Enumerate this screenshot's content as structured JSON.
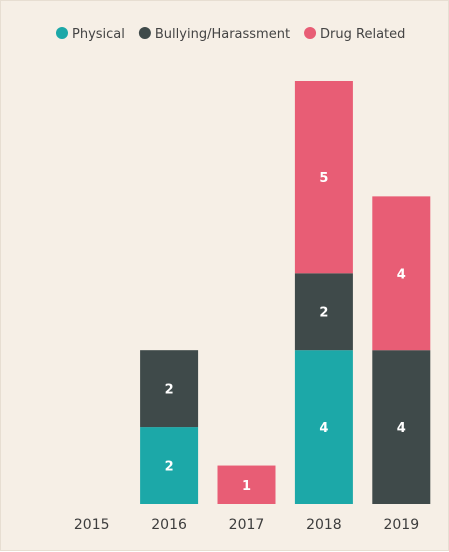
{
  "chart_data": {
    "type": "bar",
    "stacked": true,
    "categories": [
      "2015",
      "2016",
      "2017",
      "2018",
      "2019"
    ],
    "series": [
      {
        "name": "Physical",
        "color": "#1ca8a8",
        "values": [
          0,
          2,
          0,
          4,
          0
        ]
      },
      {
        "name": "Bullying/Harassment",
        "color": "#3f4a4a",
        "values": [
          0,
          2,
          0,
          2,
          4
        ]
      },
      {
        "name": "Drug Related",
        "color": "#e85d75",
        "values": [
          0,
          0,
          1,
          5,
          4
        ]
      }
    ],
    "data_labels": true,
    "legend_position": "top",
    "grid": false,
    "ylim": [
      0,
      11
    ]
  }
}
